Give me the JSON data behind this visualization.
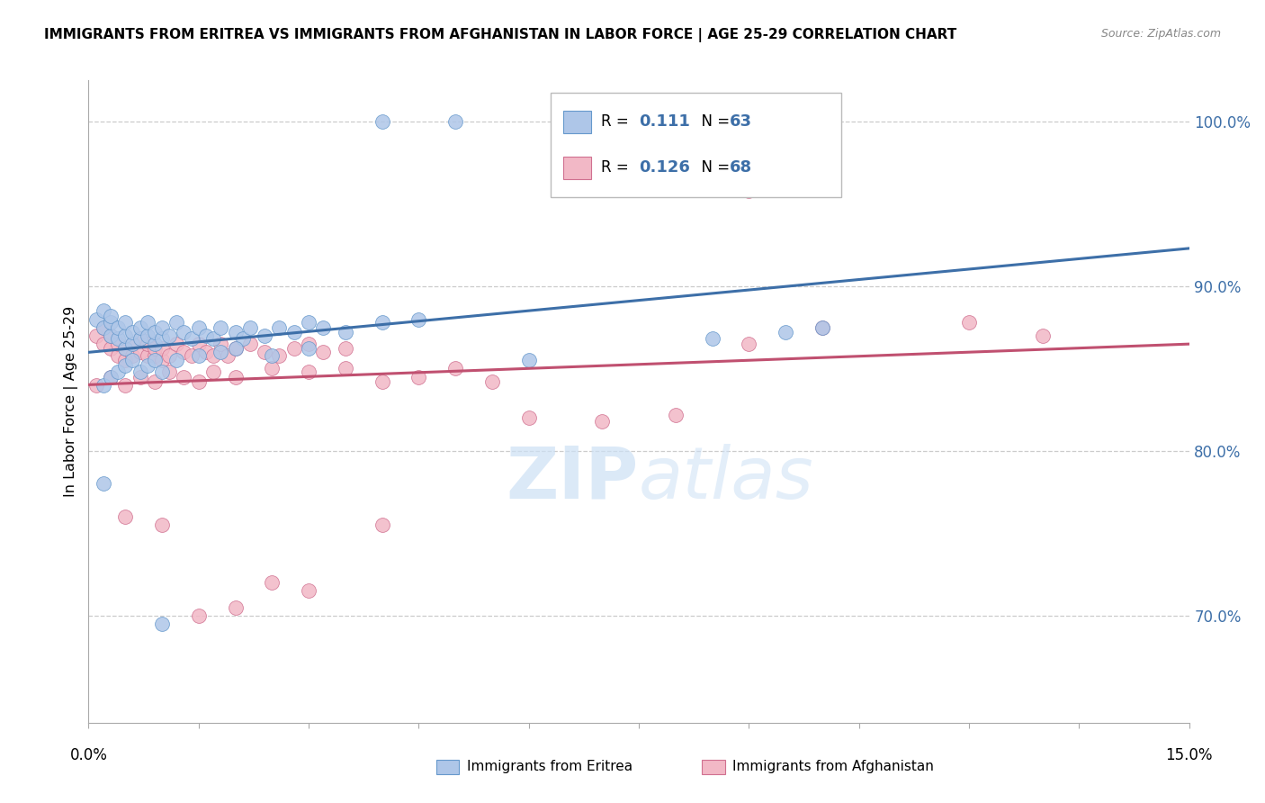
{
  "title": "IMMIGRANTS FROM ERITREA VS IMMIGRANTS FROM AFGHANISTAN IN LABOR FORCE | AGE 25-29 CORRELATION CHART",
  "source": "Source: ZipAtlas.com",
  "ylabel": "In Labor Force | Age 25-29",
  "ytick_labels": [
    "70.0%",
    "80.0%",
    "90.0%",
    "100.0%"
  ],
  "ytick_values": [
    0.7,
    0.8,
    0.9,
    1.0
  ],
  "xmin": 0.0,
  "xmax": 0.15,
  "ymin": 0.635,
  "ymax": 1.025,
  "legend_r_eritrea": "0.111",
  "legend_n_eritrea": "63",
  "legend_r_afghanistan": "0.126",
  "legend_n_afghanistan": "68",
  "legend_label_eritrea": "Immigrants from Eritrea",
  "legend_label_afghanistan": "Immigrants from Afghanistan",
  "color_eritrea_fill": "#aec6e8",
  "color_eritrea_edge": "#6699cc",
  "color_eritrea_line": "#3d6fa8",
  "color_afghanistan_fill": "#f2b8c6",
  "color_afghanistan_edge": "#d07090",
  "color_afghanistan_line": "#c05070",
  "color_legend_text_blue": "#3d6fa8",
  "color_rhs_tick": "#3d6fa8",
  "watermark_color": "#cce0f5",
  "background_color": "#ffffff",
  "eritrea_x": [
    0.001,
    0.002,
    0.002,
    0.003,
    0.003,
    0.003,
    0.004,
    0.004,
    0.005,
    0.005,
    0.005,
    0.006,
    0.006,
    0.007,
    0.007,
    0.008,
    0.008,
    0.009,
    0.009,
    0.01,
    0.01,
    0.011,
    0.012,
    0.013,
    0.014,
    0.015,
    0.016,
    0.017,
    0.018,
    0.02,
    0.021,
    0.022,
    0.024,
    0.026,
    0.028,
    0.03,
    0.032,
    0.035,
    0.04,
    0.045,
    0.002,
    0.003,
    0.004,
    0.005,
    0.006,
    0.007,
    0.008,
    0.009,
    0.01,
    0.012,
    0.015,
    0.018,
    0.02,
    0.025,
    0.03,
    0.002,
    0.01,
    0.06,
    0.085,
    0.095,
    0.1,
    0.04,
    0.05
  ],
  "eritrea_y": [
    0.88,
    0.875,
    0.885,
    0.87,
    0.878,
    0.882,
    0.868,
    0.875,
    0.862,
    0.87,
    0.878,
    0.865,
    0.872,
    0.868,
    0.875,
    0.87,
    0.878,
    0.865,
    0.872,
    0.868,
    0.875,
    0.87,
    0.878,
    0.872,
    0.868,
    0.875,
    0.87,
    0.868,
    0.875,
    0.872,
    0.868,
    0.875,
    0.87,
    0.875,
    0.872,
    0.878,
    0.875,
    0.872,
    0.878,
    0.88,
    0.84,
    0.845,
    0.848,
    0.852,
    0.855,
    0.848,
    0.852,
    0.855,
    0.848,
    0.855,
    0.858,
    0.86,
    0.862,
    0.858,
    0.862,
    0.78,
    0.695,
    0.855,
    0.868,
    0.872,
    0.875,
    1.0,
    1.0
  ],
  "afghanistan_x": [
    0.001,
    0.002,
    0.002,
    0.003,
    0.003,
    0.004,
    0.004,
    0.005,
    0.005,
    0.006,
    0.006,
    0.007,
    0.007,
    0.008,
    0.008,
    0.009,
    0.009,
    0.01,
    0.01,
    0.011,
    0.012,
    0.013,
    0.014,
    0.015,
    0.016,
    0.017,
    0.018,
    0.019,
    0.02,
    0.022,
    0.024,
    0.026,
    0.028,
    0.03,
    0.032,
    0.035,
    0.001,
    0.003,
    0.005,
    0.007,
    0.009,
    0.011,
    0.013,
    0.015,
    0.017,
    0.02,
    0.025,
    0.03,
    0.035,
    0.04,
    0.045,
    0.05,
    0.055,
    0.06,
    0.07,
    0.08,
    0.09,
    0.1,
    0.12,
    0.13,
    0.005,
    0.01,
    0.015,
    0.02,
    0.025,
    0.03,
    0.09,
    0.04
  ],
  "afghanistan_y": [
    0.87,
    0.865,
    0.875,
    0.862,
    0.87,
    0.858,
    0.865,
    0.855,
    0.862,
    0.858,
    0.865,
    0.86,
    0.868,
    0.858,
    0.865,
    0.858,
    0.862,
    0.855,
    0.862,
    0.858,
    0.865,
    0.86,
    0.858,
    0.865,
    0.86,
    0.858,
    0.865,
    0.858,
    0.862,
    0.865,
    0.86,
    0.858,
    0.862,
    0.865,
    0.86,
    0.862,
    0.84,
    0.845,
    0.84,
    0.845,
    0.842,
    0.848,
    0.845,
    0.842,
    0.848,
    0.845,
    0.85,
    0.848,
    0.85,
    0.842,
    0.845,
    0.85,
    0.842,
    0.82,
    0.818,
    0.822,
    0.865,
    0.875,
    0.878,
    0.87,
    0.76,
    0.755,
    0.7,
    0.705,
    0.72,
    0.715,
    0.958,
    0.755
  ]
}
